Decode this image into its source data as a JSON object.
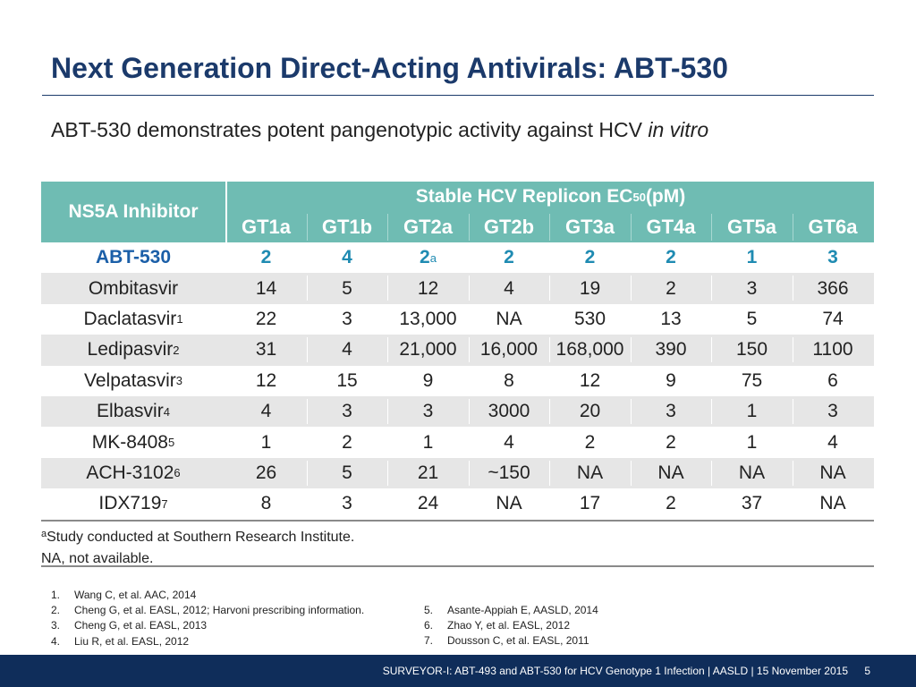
{
  "title": "Next Generation Direct-Acting Antivirals: ABT-530",
  "subtitle": {
    "main": "ABT-530 demonstrates potent pangenotypic activity against HCV ",
    "italic": "in vitro"
  },
  "table": {
    "inhibitor_header": "NS5A Inhibitor",
    "span_header": {
      "main": "Stable HCV Replicon  EC",
      "sub": "50",
      "tail": " (pM)"
    },
    "genotypes": [
      "GT1a",
      "GT1b",
      "GT2a",
      "GT2b",
      "GT3a",
      "GT4a",
      "GT5a",
      "GT6a"
    ],
    "rows": [
      {
        "name": "ABT-530",
        "sup": "",
        "values": [
          "2",
          "4",
          "2",
          "2",
          "2",
          "2",
          "1",
          "3"
        ],
        "gt2a_sup": "a"
      },
      {
        "name": "Ombitasvir",
        "sup": "",
        "values": [
          "14",
          "5",
          "12",
          "4",
          "19",
          "2",
          "3",
          "366"
        ]
      },
      {
        "name": "Daclatasvir",
        "sup": "1",
        "values": [
          "22",
          "3",
          "13,000",
          "NA",
          "530",
          "13",
          "5",
          "74"
        ]
      },
      {
        "name": "Ledipasvir",
        "sup": "2",
        "values": [
          "31",
          "4",
          "21,000",
          "16,000",
          "168,000",
          "390",
          "150",
          "1100"
        ]
      },
      {
        "name": "Velpatasvir",
        "sup": "3",
        "values": [
          "12",
          "15",
          "9",
          "8",
          "12",
          "9",
          "75",
          "6"
        ]
      },
      {
        "name": "Elbasvir",
        "sup": "4",
        "values": [
          "4",
          "3",
          "3",
          "3000",
          "20",
          "3",
          "1",
          "3"
        ]
      },
      {
        "name": "MK-8408",
        "sup": "5",
        "values": [
          "1",
          "2",
          "1",
          "4",
          "2",
          "2",
          "1",
          "4"
        ]
      },
      {
        "name": "ACH-3102",
        "sup": "6",
        "values": [
          "26",
          "5",
          "21",
          "~150",
          "NA",
          "NA",
          "NA",
          "NA"
        ]
      },
      {
        "name": "IDX719",
        "sup": "7",
        "values": [
          "8",
          "3",
          "24",
          "NA",
          "17",
          "2",
          "37",
          "NA"
        ]
      }
    ]
  },
  "notes": {
    "line1_sup": "a",
    "line1": "Study conducted at Southern Research Institute.",
    "line2": "NA, not available."
  },
  "references_left": [
    {
      "n": "1.",
      "text": "Wang C, et al. AAC, 2014"
    },
    {
      "n": "2.",
      "text": "Cheng G, et al. EASL, 2012; Harvoni prescribing information."
    },
    {
      "n": "3.",
      "text": "Cheng G, et al. EASL, 2013"
    },
    {
      "n": "4.",
      "text": "Liu R, et al. EASL, 2012"
    }
  ],
  "references_right": [
    {
      "n": "5.",
      "text": "Asante-Appiah E, AASLD, 2014"
    },
    {
      "n": "6.",
      "text": "Zhao Y, et al. EASL, 2012"
    },
    {
      "n": "7.",
      "text": "Dousson  C, et al. EASL, 2011"
    }
  ],
  "footer": {
    "text": "SURVEYOR-I: ABT-493 and ABT-530 for HCV Genotype 1 Infection   | AASLD | 15 November 2015",
    "page": "5"
  },
  "colors": {
    "title": "#1b3a6b",
    "header_bg": "#6fbcb3",
    "highlight_blue": "#1f8bb2",
    "alt_row": "#e6e6e6",
    "footer_bg": "#0f2d5a"
  }
}
